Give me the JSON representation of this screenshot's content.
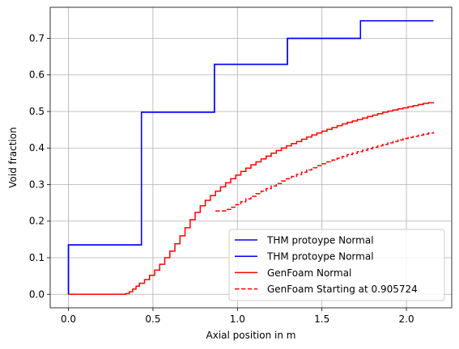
{
  "chart_data": {
    "type": "line",
    "title": "",
    "xlabel": "Axial position in m",
    "ylabel": "Void fraction",
    "xlim": [
      -0.108,
      2.268
    ],
    "ylim": [
      -0.037,
      0.785
    ],
    "grid": true,
    "legend_position": "lower-right",
    "xticks": [
      0.0,
      0.5,
      1.0,
      1.5,
      2.0
    ],
    "xtick_labels": [
      "0.0",
      "0.5",
      "1.0",
      "1.5",
      "2.0"
    ],
    "yticks": [
      0.0,
      0.1,
      0.2,
      0.3,
      0.4,
      0.5,
      0.6,
      0.7
    ],
    "ytick_labels": [
      "0.0",
      "0.1",
      "0.2",
      "0.3",
      "0.4",
      "0.5",
      "0.6",
      "0.7"
    ],
    "series": [
      {
        "name": "THM protoype Normal",
        "color": "#0000ff",
        "style": "solid",
        "step": true,
        "x": [
          0.0,
          0.0,
          0.432,
          0.432,
          0.864,
          0.864,
          1.296,
          1.296,
          1.728,
          1.728,
          2.16
        ],
        "y": [
          0.0,
          0.135,
          0.135,
          0.498,
          0.498,
          0.629,
          0.629,
          0.7,
          0.7,
          0.748,
          0.748
        ]
      },
      {
        "name": "THM protoype Normal",
        "color": "#0000ff",
        "style": "solid",
        "step": true,
        "x": [
          0.0,
          0.0,
          0.432,
          0.432,
          0.864,
          0.864,
          1.296,
          1.296,
          1.728,
          1.728,
          2.16
        ],
        "y": [
          0.0,
          0.135,
          0.135,
          0.498,
          0.498,
          0.629,
          0.629,
          0.7,
          0.7,
          0.748,
          0.748
        ]
      },
      {
        "name": "GenFoam Normal",
        "color": "#ff0000",
        "style": "solid",
        "step": true,
        "x": [
          0.0,
          0.34,
          0.36,
          0.38,
          0.4,
          0.42,
          0.45,
          0.48,
          0.51,
          0.54,
          0.57,
          0.6,
          0.63,
          0.66,
          0.69,
          0.72,
          0.75,
          0.78,
          0.81,
          0.84,
          0.87,
          0.9,
          0.93,
          0.96,
          0.99,
          1.02,
          1.05,
          1.08,
          1.11,
          1.14,
          1.17,
          1.2,
          1.23,
          1.26,
          1.29,
          1.32,
          1.35,
          1.38,
          1.41,
          1.44,
          1.47,
          1.5,
          1.53,
          1.56,
          1.59,
          1.62,
          1.65,
          1.68,
          1.71,
          1.74,
          1.77,
          1.8,
          1.83,
          1.86,
          1.89,
          1.92,
          1.95,
          1.98,
          2.01,
          2.04,
          2.07,
          2.1,
          2.13,
          2.16
        ],
        "y": [
          0.0,
          0.002,
          0.007,
          0.014,
          0.022,
          0.03,
          0.04,
          0.052,
          0.066,
          0.082,
          0.1,
          0.118,
          0.138,
          0.16,
          0.182,
          0.204,
          0.224,
          0.242,
          0.257,
          0.27,
          0.282,
          0.294,
          0.305,
          0.316,
          0.326,
          0.336,
          0.345,
          0.354,
          0.362,
          0.37,
          0.378,
          0.386,
          0.393,
          0.4,
          0.406,
          0.412,
          0.418,
          0.424,
          0.43,
          0.436,
          0.441,
          0.446,
          0.451,
          0.456,
          0.461,
          0.466,
          0.47,
          0.474,
          0.478,
          0.482,
          0.486,
          0.49,
          0.494,
          0.498,
          0.501,
          0.504,
          0.507,
          0.51,
          0.513,
          0.516,
          0.519,
          0.522,
          0.524,
          0.525
        ]
      },
      {
        "name": "GenFoam Starting at 0.905724",
        "color": "#ff0000",
        "style": "dashed",
        "step": true,
        "x": [
          0.87,
          0.9,
          0.93,
          0.96,
          0.99,
          1.02,
          1.05,
          1.08,
          1.11,
          1.14,
          1.17,
          1.2,
          1.23,
          1.26,
          1.29,
          1.32,
          1.35,
          1.38,
          1.41,
          1.44,
          1.47,
          1.5,
          1.53,
          1.56,
          1.59,
          1.62,
          1.65,
          1.68,
          1.71,
          1.74,
          1.77,
          1.8,
          1.83,
          1.86,
          1.89,
          1.92,
          1.95,
          1.98,
          2.01,
          2.04,
          2.07,
          2.1,
          2.13,
          2.16
        ],
        "y": [
          0.228,
          0.228,
          0.232,
          0.238,
          0.245,
          0.253,
          0.261,
          0.268,
          0.275,
          0.282,
          0.289,
          0.296,
          0.303,
          0.31,
          0.316,
          0.322,
          0.328,
          0.334,
          0.34,
          0.346,
          0.352,
          0.357,
          0.362,
          0.367,
          0.372,
          0.377,
          0.382,
          0.386,
          0.39,
          0.394,
          0.398,
          0.402,
          0.406,
          0.41,
          0.414,
          0.418,
          0.422,
          0.426,
          0.429,
          0.432,
          0.435,
          0.438,
          0.441,
          0.444
        ]
      }
    ]
  }
}
